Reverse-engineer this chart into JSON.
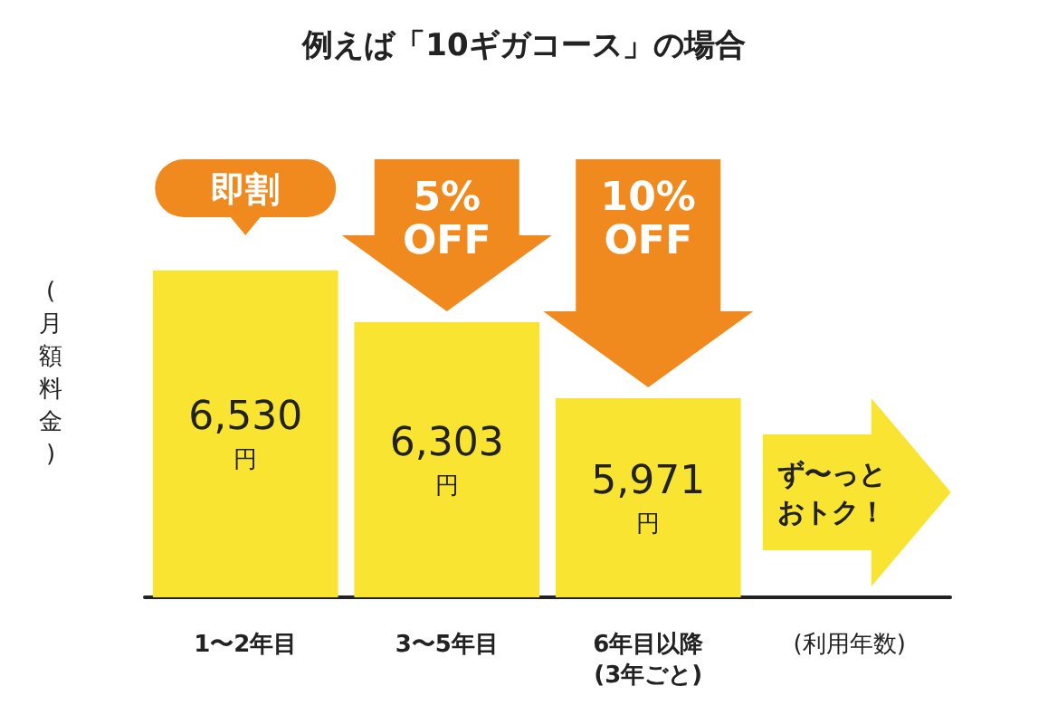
{
  "chart_data": {
    "type": "bar",
    "title": "例えば「10ギガコース」の場合",
    "categories": [
      "1〜2年目",
      "3〜5年目",
      "6年目以降\n(3年ごと)",
      null
    ],
    "values": [
      6530,
      6303,
      5971,
      null
    ],
    "value_labels": [
      "6,530\n円",
      "6,303\n円",
      "5,971\n円",
      null
    ],
    "color": "#f9e531",
    "ylabel": "(月額料金)",
    "xlabel": "(利用年数)",
    "ylim": [
      5100,
      7000
    ],
    "tick_labels": "x",
    "grid": false,
    "annotations": [
      "即割",
      "5%\nOFF",
      "10%\nOFF",
      "ず〜っとおトク！"
    ]
  }
}
